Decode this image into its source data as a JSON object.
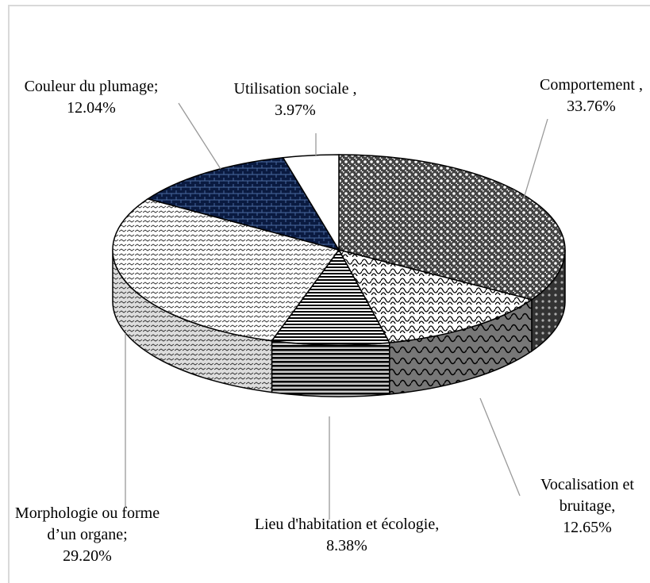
{
  "chart_data": {
    "type": "pie3d",
    "categories": [
      "Comportement ,",
      "Vocalisation et bruitage,",
      "Lieu d'habitation et écologie,",
      "Morphologie ou forme d’un organe;",
      "Couleur du plumage;",
      "Utilisation sociale ,"
    ],
    "values": [
      33.76,
      12.65,
      8.38,
      29.2,
      12.04,
      3.97
    ],
    "value_labels": [
      "33.76%",
      "12.65%",
      "8.38%",
      "29.20%",
      "12.04%",
      "3.97%"
    ]
  }
}
